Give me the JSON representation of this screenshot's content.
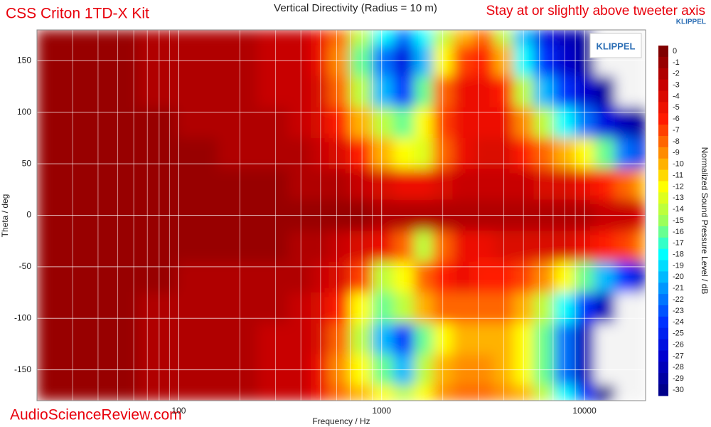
{
  "chart_data": {
    "type": "heatmap",
    "title": "Vertical Directivity (Radius = 10 m)",
    "annotations": [
      "CSS Criton 1TD-X Kit",
      "Stay at or slightly above tweeter axis"
    ],
    "watermark": "AudioScienceReview.com",
    "brand_label": "KLIPPEL",
    "brand_logo": "KLIPPEL",
    "x_label": "Frequency / Hz",
    "y_label": "Theta / deg",
    "colorbar_label": "Normalized Sound Pressure Level / dB",
    "x_log": true,
    "grid": true,
    "xlim": [
      20,
      20000
    ],
    "xticks": [
      100,
      1000,
      10000
    ],
    "xminor": [
      20,
      30,
      40,
      50,
      60,
      70,
      80,
      90,
      200,
      300,
      400,
      500,
      600,
      700,
      800,
      900,
      2000,
      3000,
      4000,
      5000,
      6000,
      7000,
      8000,
      9000,
      20000
    ],
    "ylim": [
      -180,
      180
    ],
    "yticks": [
      -150,
      -100,
      -50,
      0,
      50,
      100,
      150
    ],
    "x": [
      20,
      30,
      50,
      80,
      120,
      200,
      300,
      400,
      500,
      600,
      800,
      1000,
      1300,
      1600,
      2000,
      2500,
      3200,
      4000,
      5000,
      6300,
      8000,
      10000,
      12500,
      16000,
      20000
    ],
    "y": [
      180,
      150,
      120,
      90,
      60,
      30,
      0,
      -30,
      -60,
      -90,
      -120,
      -150,
      -180
    ],
    "z": [
      [
        -1,
        -1,
        -1,
        -2,
        -2,
        -2,
        -3,
        -3,
        -5,
        -8,
        -14,
        -18,
        -22,
        -18,
        -14,
        -10,
        -8,
        -14,
        -20,
        -26,
        -28,
        -29,
        -35,
        -35,
        -35
      ],
      [
        -1,
        -1,
        -1,
        -2,
        -2,
        -2,
        -3,
        -3,
        -5,
        -9,
        -16,
        -22,
        -26,
        -20,
        -12,
        -7,
        -6,
        -10,
        -18,
        -24,
        -27,
        -29,
        -35,
        -35,
        -35
      ],
      [
        -1,
        -1,
        -1,
        -2,
        -2,
        -2,
        -3,
        -3,
        -4,
        -8,
        -14,
        -20,
        -24,
        -16,
        -8,
        -5,
        -5,
        -6,
        -14,
        -20,
        -24,
        -27,
        -29,
        -35,
        -35
      ],
      [
        -1,
        -1,
        -1,
        -1,
        -2,
        -2,
        -2,
        -3,
        -4,
        -6,
        -10,
        -14,
        -16,
        -12,
        -7,
        -5,
        -5,
        -5,
        -9,
        -14,
        -18,
        -22,
        -26,
        -28,
        -30
      ],
      [
        -1,
        -1,
        -1,
        -1,
        -1,
        -2,
        -2,
        -2,
        -3,
        -4,
        -6,
        -10,
        -12,
        -13,
        -8,
        -5,
        -4,
        -4,
        -6,
        -8,
        -10,
        -12,
        -16,
        -22,
        -26
      ],
      [
        -1,
        -1,
        -1,
        -1,
        -1,
        -1,
        -1,
        -2,
        -2,
        -2,
        -3,
        -4,
        -5,
        -5,
        -4,
        -3,
        -3,
        -3,
        -3,
        -4,
        -4,
        -5,
        -6,
        -8,
        -10
      ],
      [
        -1,
        -1,
        -1,
        -1,
        -1,
        -1,
        -1,
        -1,
        -1,
        -1,
        -1,
        -2,
        -2,
        -2,
        -2,
        -2,
        -2,
        -2,
        -2,
        -2,
        -2,
        -2,
        -3,
        -3,
        -4
      ],
      [
        -1,
        -1,
        -1,
        -1,
        -1,
        -1,
        -1,
        -2,
        -2,
        -3,
        -4,
        -5,
        -8,
        -14,
        -8,
        -5,
        -5,
        -4,
        -4,
        -4,
        -4,
        -5,
        -6,
        -7,
        -9
      ],
      [
        -1,
        -1,
        -1,
        -1,
        -2,
        -2,
        -2,
        -2,
        -3,
        -4,
        -7,
        -14,
        -12,
        -8,
        -6,
        -5,
        -6,
        -6,
        -7,
        -9,
        -12,
        -16,
        -20,
        -24,
        -28
      ],
      [
        -1,
        -1,
        -1,
        -2,
        -2,
        -2,
        -2,
        -3,
        -4,
        -6,
        -12,
        -16,
        -14,
        -10,
        -8,
        -8,
        -8,
        -8,
        -10,
        -14,
        -18,
        -24,
        -28,
        -32,
        -35
      ],
      [
        -1,
        -1,
        -1,
        -2,
        -2,
        -2,
        -3,
        -3,
        -4,
        -8,
        -14,
        -20,
        -24,
        -16,
        -12,
        -10,
        -10,
        -10,
        -12,
        -16,
        -22,
        -28,
        -35,
        -35,
        -35
      ],
      [
        -1,
        -1,
        -1,
        -2,
        -2,
        -2,
        -3,
        -3,
        -5,
        -9,
        -12,
        -16,
        -20,
        -14,
        -10,
        -9,
        -9,
        -10,
        -12,
        -16,
        -22,
        -28,
        -35,
        -35,
        -35
      ],
      [
        -1,
        -1,
        -1,
        -2,
        -2,
        -2,
        -3,
        -3,
        -5,
        -8,
        -10,
        -12,
        -14,
        -12,
        -9,
        -8,
        -8,
        -9,
        -10,
        -14,
        -18,
        -24,
        -30,
        -35,
        -35
      ]
    ],
    "zlim": [
      -30,
      0
    ],
    "zticks": [
      0,
      -1,
      -2,
      -3,
      -4,
      -5,
      -6,
      -7,
      -8,
      -9,
      -10,
      -11,
      -12,
      -13,
      -14,
      -15,
      -16,
      -17,
      -18,
      -19,
      -20,
      -21,
      -22,
      -23,
      -24,
      -25,
      -26,
      -27,
      -28,
      -29,
      -30
    ],
    "colorscale": [
      [
        0,
        "#800000"
      ],
      [
        -3,
        "#c80000"
      ],
      [
        -6,
        "#ff1a00"
      ],
      [
        -9,
        "#ff8c00"
      ],
      [
        -12,
        "#ffff00"
      ],
      [
        -15,
        "#9cff5a"
      ],
      [
        -18,
        "#00ffff"
      ],
      [
        -21,
        "#0096ff"
      ],
      [
        -24,
        "#0032ff"
      ],
      [
        -27,
        "#0000d0"
      ],
      [
        -30,
        "#00008b"
      ]
    ],
    "below_color": "#f4f4f4",
    "annotation_color": "#e8000b",
    "brand_color": "#2d6fb5"
  }
}
